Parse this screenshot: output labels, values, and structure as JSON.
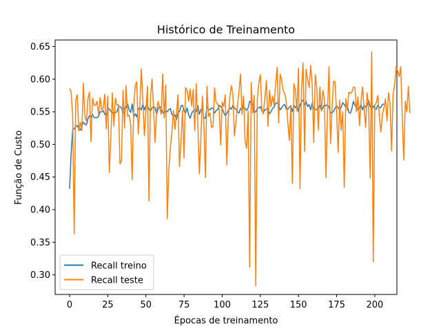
{
  "chart_data": {
    "type": "line",
    "title": "Histórico de Treinamento",
    "xlabel": "Épocas de treinamento",
    "ylabel": "Função de Custo",
    "xlim": [
      -9.5,
      214.5
    ],
    "ylim": [
      0.27,
      0.66
    ],
    "xticks": [
      0,
      25,
      50,
      75,
      100,
      125,
      150,
      175,
      200
    ],
    "yticks": [
      0.3,
      0.35,
      0.4,
      0.45,
      0.5,
      0.55,
      0.6,
      0.65
    ],
    "grid": false,
    "legend": "lower-left",
    "series": [
      {
        "name": "Recall treino",
        "color": "#1f77b4",
        "y": [
          0.432,
          0.487,
          0.522,
          0.524,
          0.527,
          0.529,
          0.524,
          0.522,
          0.528,
          0.534,
          0.531,
          0.53,
          0.539,
          0.544,
          0.542,
          0.546,
          0.541,
          0.541,
          0.541,
          0.543,
          0.55,
          0.55,
          0.552,
          0.546,
          0.545,
          0.556,
          0.554,
          0.551,
          0.548,
          0.548,
          0.549,
          0.55,
          0.558,
          0.558,
          0.556,
          0.548,
          0.556,
          0.556,
          0.562,
          0.553,
          0.549,
          0.562,
          0.542,
          0.547,
          0.542,
          0.555,
          0.556,
          0.553,
          0.562,
          0.553,
          0.559,
          0.559,
          0.554,
          0.551,
          0.556,
          0.558,
          0.556,
          0.546,
          0.555,
          0.558,
          0.556,
          0.549,
          0.547,
          0.552,
          0.55,
          0.553,
          0.555,
          0.546,
          0.544,
          0.545,
          0.538,
          0.548,
          0.55,
          0.559,
          0.56,
          0.551,
          0.548,
          0.556,
          0.545,
          0.54,
          0.548,
          0.551,
          0.553,
          0.55,
          0.56,
          0.546,
          0.553,
          0.556,
          0.54,
          0.54,
          0.558,
          0.554,
          0.553,
          0.556,
          0.555,
          0.548,
          0.552,
          0.553,
          0.56,
          0.558,
          0.555,
          0.549,
          0.544,
          0.547,
          0.552,
          0.556,
          0.554,
          0.56,
          0.556,
          0.554,
          0.55,
          0.548,
          0.555,
          0.553,
          0.558,
          0.555,
          0.552,
          0.556,
          0.566,
          0.564,
          0.56,
          0.549,
          0.55,
          0.555,
          0.556,
          0.558,
          0.551,
          0.549,
          0.553,
          0.554,
          0.555,
          0.547,
          0.55,
          0.555,
          0.557,
          0.563,
          0.564,
          0.561,
          0.553,
          0.556,
          0.56,
          0.561,
          0.554,
          0.554,
          0.557,
          0.559,
          0.55,
          0.56,
          0.556,
          0.56,
          0.55,
          0.56,
          0.565,
          0.568,
          0.561,
          0.566,
          0.558,
          0.561,
          0.553,
          0.563,
          0.555,
          0.554,
          0.553,
          0.557,
          0.56,
          0.552,
          0.556,
          0.561,
          0.559,
          0.561,
          0.557,
          0.548,
          0.548,
          0.551,
          0.556,
          0.559,
          0.556,
          0.553,
          0.557,
          0.564,
          0.561,
          0.557,
          0.559,
          0.549,
          0.548,
          0.555,
          0.566,
          0.56,
          0.557,
          0.553,
          0.556,
          0.561,
          0.553,
          0.56,
          0.557,
          0.56,
          0.567,
          0.558,
          0.554,
          0.559,
          0.555,
          0.554,
          0.56,
          0.556,
          0.557,
          0.561,
          0.562
        ]
      },
      {
        "name": "Recall teste",
        "color": "#ff7f0e",
        "y": [
          0.586,
          0.58,
          0.543,
          0.363,
          0.568,
          0.576,
          0.521,
          0.534,
          0.521,
          0.594,
          0.543,
          0.536,
          0.57,
          0.58,
          0.504,
          0.571,
          0.56,
          0.56,
          0.566,
          0.545,
          0.572,
          0.553,
          0.555,
          0.577,
          0.524,
          0.574,
          0.457,
          0.51,
          0.579,
          0.528,
          0.571,
          0.56,
          0.561,
          0.47,
          0.475,
          0.583,
          0.525,
          0.59,
          0.543,
          0.545,
          0.53,
          0.446,
          0.556,
          0.59,
          0.596,
          0.516,
          0.556,
          0.616,
          0.568,
          0.513,
          0.551,
          0.589,
          0.413,
          0.572,
          0.6,
          0.556,
          0.503,
          0.552,
          0.566,
          0.556,
          0.546,
          0.608,
          0.541,
          0.591,
          0.386,
          0.461,
          0.494,
          0.518,
          0.552,
          0.523,
          0.546,
          0.576,
          0.466,
          0.504,
          0.552,
          0.479,
          0.587,
          0.583,
          0.566,
          0.585,
          0.559,
          0.584,
          0.521,
          0.593,
          0.534,
          0.455,
          0.508,
          0.574,
          0.53,
          0.449,
          0.589,
          0.543,
          0.548,
          0.526,
          0.527,
          0.587,
          0.564,
          0.562,
          0.555,
          0.499,
          0.565,
          0.558,
          0.576,
          0.468,
          0.541,
          0.571,
          0.59,
          0.577,
          0.513,
          0.534,
          0.559,
          0.581,
          0.608,
          0.546,
          0.574,
          0.505,
          0.494,
          0.551,
          0.312,
          0.595,
          0.548,
          0.575,
          0.283,
          0.568,
          0.594,
          0.607,
          0.552,
          0.547,
          0.572,
          0.598,
          0.528,
          0.583,
          0.558,
          0.574,
          0.561,
          0.592,
          0.618,
          0.533,
          0.608,
          0.598,
          0.582,
          0.578,
          0.565,
          0.534,
          0.506,
          0.56,
          0.44,
          0.593,
          0.583,
          0.551,
          0.617,
          0.432,
          0.585,
          0.625,
          0.489,
          0.615,
          0.599,
          0.587,
          0.621,
          0.59,
          0.503,
          0.607,
          0.586,
          0.522,
          0.588,
          0.551,
          0.583,
          0.569,
          0.449,
          0.552,
          0.619,
          0.501,
          0.556,
          0.597,
          0.596,
          0.546,
          0.488,
          0.568,
          0.522,
          0.55,
          0.434,
          0.57,
          0.552,
          0.58,
          0.578,
          0.58,
          0.588,
          0.587,
          0.55,
          0.573,
          0.529,
          0.567,
          0.588,
          0.555,
          0.526,
          0.579,
          0.557,
          0.448,
          0.642,
          0.32,
          0.56,
          0.564,
          0.575,
          0.544,
          0.519,
          0.546,
          0.555,
          0.57,
          0.536,
          0.579,
          0.564,
          0.49,
          0.576,
          0.591,
          0.619,
          0.612,
          0.604,
          0.619,
          0.542,
          0.476,
          0.566,
          0.55,
          0.589,
          0.548
        ]
      }
    ]
  }
}
